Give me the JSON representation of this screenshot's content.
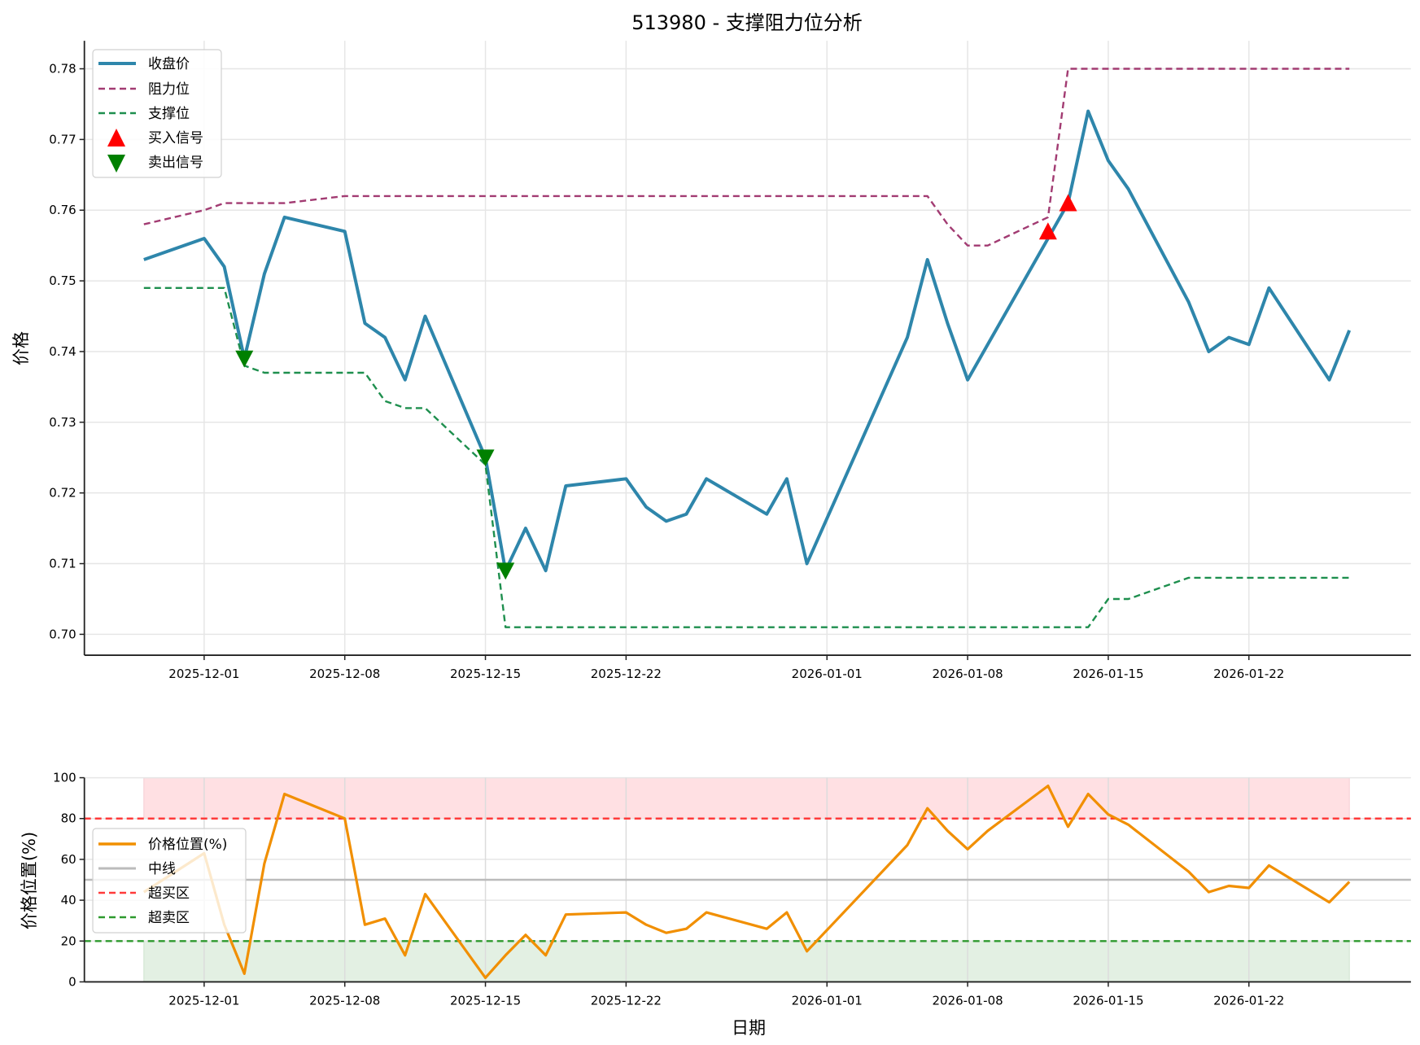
{
  "figure": {
    "title": "513980 - 支撑阻力位分析"
  },
  "chart_data": [
    {
      "type": "line",
      "title": "513980 - 支撑阻力位分析",
      "xlabel": "",
      "ylabel": "价格",
      "ylim": [
        0.696,
        0.784
      ],
      "grid": true,
      "legend_position": "upper left",
      "x_tick_labels": [
        "2025-12-01",
        "2025-12-08",
        "2025-12-15",
        "2025-12-22",
        "2026-01-01",
        "2026-01-08",
        "2026-01-15",
        "2026-01-22"
      ],
      "y_tick_labels": [
        "0.70",
        "0.71",
        "0.72",
        "0.73",
        "0.74",
        "0.75",
        "0.76",
        "0.77",
        "0.78"
      ],
      "x": [
        "2025-11-28",
        "2025-12-01",
        "2025-12-02",
        "2025-12-03",
        "2025-12-04",
        "2025-12-05",
        "2025-12-08",
        "2025-12-09",
        "2025-12-10",
        "2025-12-11",
        "2025-12-12",
        "2025-12-15",
        "2025-12-16",
        "2025-12-17",
        "2025-12-18",
        "2025-12-19",
        "2025-12-22",
        "2025-12-23",
        "2025-12-24",
        "2025-12-25",
        "2025-12-26",
        "2025-12-29",
        "2025-12-30",
        "2025-12-31",
        "2026-01-05",
        "2026-01-06",
        "2026-01-07",
        "2026-01-08",
        "2026-01-09",
        "2026-01-12",
        "2026-01-13",
        "2026-01-14",
        "2026-01-15",
        "2026-01-16",
        "2026-01-19",
        "2026-01-20",
        "2026-01-21",
        "2026-01-22",
        "2026-01-23",
        "2026-01-26",
        "2026-01-27"
      ],
      "series": [
        {
          "name": "收盘价",
          "color": "#2E86AB",
          "style": "solid",
          "values": [
            0.753,
            0.756,
            0.752,
            0.739,
            0.751,
            0.759,
            0.757,
            0.744,
            0.742,
            0.736,
            0.745,
            0.725,
            0.709,
            0.715,
            0.709,
            0.721,
            0.722,
            0.718,
            0.716,
            0.717,
            0.722,
            0.717,
            0.722,
            0.71,
            0.742,
            0.753,
            0.744,
            0.736,
            0.741,
            0.756,
            0.761,
            0.774,
            0.767,
            0.763,
            0.747,
            0.74,
            0.742,
            0.741,
            0.749,
            0.736,
            0.743
          ]
        },
        {
          "name": "阻力位",
          "color": "#A23B72",
          "style": "dashed",
          "values": [
            0.758,
            0.76,
            0.761,
            0.761,
            0.761,
            0.761,
            0.762,
            0.762,
            0.762,
            0.762,
            0.762,
            0.762,
            0.762,
            0.762,
            0.762,
            0.762,
            0.762,
            0.762,
            0.762,
            0.762,
            0.762,
            0.762,
            0.762,
            0.762,
            0.762,
            0.762,
            0.758,
            0.755,
            0.755,
            0.759,
            0.78,
            0.78,
            0.78,
            0.78,
            0.78,
            0.78,
            0.78,
            0.78,
            0.78,
            0.78,
            0.78
          ]
        },
        {
          "name": "支撑位",
          "color": "#1E8F4E",
          "style": "dashed",
          "values": [
            0.749,
            0.749,
            0.749,
            0.738,
            0.737,
            0.737,
            0.737,
            0.737,
            0.733,
            0.732,
            0.732,
            0.724,
            0.701,
            0.701,
            0.701,
            0.701,
            0.701,
            0.701,
            0.701,
            0.701,
            0.701,
            0.701,
            0.701,
            0.701,
            0.701,
            0.701,
            0.701,
            0.701,
            0.701,
            0.701,
            0.701,
            0.701,
            0.705,
            0.705,
            0.708,
            0.708,
            0.708,
            0.708,
            0.708,
            0.708,
            0.708
          ]
        }
      ],
      "markers": [
        {
          "name": "买入信号",
          "color": "#FF0000",
          "shape": "triangle-up",
          "points": [
            {
              "x": "2026-01-12",
              "y": 0.757
            },
            {
              "x": "2026-01-13",
              "y": 0.761
            }
          ]
        },
        {
          "name": "卖出信号",
          "color": "#008000",
          "shape": "triangle-down",
          "points": [
            {
              "x": "2025-12-03",
              "y": 0.739
            },
            {
              "x": "2025-12-15",
              "y": 0.725
            },
            {
              "x": "2025-12-16",
              "y": 0.709
            }
          ]
        }
      ]
    },
    {
      "type": "line",
      "title": "",
      "xlabel": "日期",
      "ylabel": "价格位置(%)",
      "ylim": [
        0,
        100
      ],
      "grid": true,
      "legend_position": "center left",
      "x_tick_labels": [
        "2025-12-01",
        "2025-12-08",
        "2025-12-15",
        "2025-12-22",
        "2026-01-01",
        "2026-01-08",
        "2026-01-15",
        "2026-01-22"
      ],
      "y_tick_labels": [
        "0",
        "20",
        "40",
        "60",
        "80",
        "100"
      ],
      "x": [
        "2025-11-28",
        "2025-12-01",
        "2025-12-02",
        "2025-12-03",
        "2025-12-04",
        "2025-12-05",
        "2025-12-08",
        "2025-12-09",
        "2025-12-10",
        "2025-12-11",
        "2025-12-12",
        "2025-12-15",
        "2025-12-16",
        "2025-12-17",
        "2025-12-18",
        "2025-12-19",
        "2025-12-22",
        "2025-12-23",
        "2025-12-24",
        "2025-12-25",
        "2025-12-26",
        "2025-12-29",
        "2025-12-30",
        "2025-12-31",
        "2026-01-05",
        "2026-01-06",
        "2026-01-07",
        "2026-01-08",
        "2026-01-09",
        "2026-01-12",
        "2026-01-13",
        "2026-01-14",
        "2026-01-15",
        "2026-01-16",
        "2026-01-19",
        "2026-01-20",
        "2026-01-21",
        "2026-01-22",
        "2026-01-23",
        "2026-01-26",
        "2026-01-27"
      ],
      "series": [
        {
          "name": "价格位置(%)",
          "color": "#F18F01",
          "style": "solid",
          "values": [
            44,
            63,
            28,
            4,
            58,
            92,
            80,
            28,
            31,
            13,
            43,
            2,
            13,
            23,
            13,
            33,
            34,
            28,
            24,
            26,
            34,
            26,
            34,
            15,
            67,
            85,
            74,
            65,
            74,
            96,
            76,
            92,
            82,
            77,
            54,
            44,
            47,
            46,
            57,
            39,
            49
          ]
        },
        {
          "name": "中线",
          "color": "#BBBBBB",
          "style": "solid",
          "value": 50
        },
        {
          "name": "超买区",
          "color": "#FF3B3B",
          "style": "dashed",
          "value": 80
        },
        {
          "name": "超卖区",
          "color": "#2E9A2E",
          "style": "dashed",
          "value": 20
        }
      ],
      "bands": [
        {
          "from": 80,
          "to": 100,
          "color": "#FFE0E3"
        },
        {
          "from": 0,
          "to": 20,
          "color": "#E3F0E3"
        }
      ]
    }
  ],
  "legend_top": [
    {
      "label": "收盘价"
    },
    {
      "label": "阻力位"
    },
    {
      "label": "支撑位"
    },
    {
      "label": "买入信号"
    },
    {
      "label": "卖出信号"
    }
  ],
  "legend_bottom": [
    {
      "label": "价格位置(%)"
    },
    {
      "label": "中线"
    },
    {
      "label": "超买区"
    },
    {
      "label": "超卖区"
    }
  ],
  "axes": {
    "top_ylabel": "价格",
    "bottom_ylabel": "价格位置(%)",
    "bottom_xlabel": "日期"
  }
}
